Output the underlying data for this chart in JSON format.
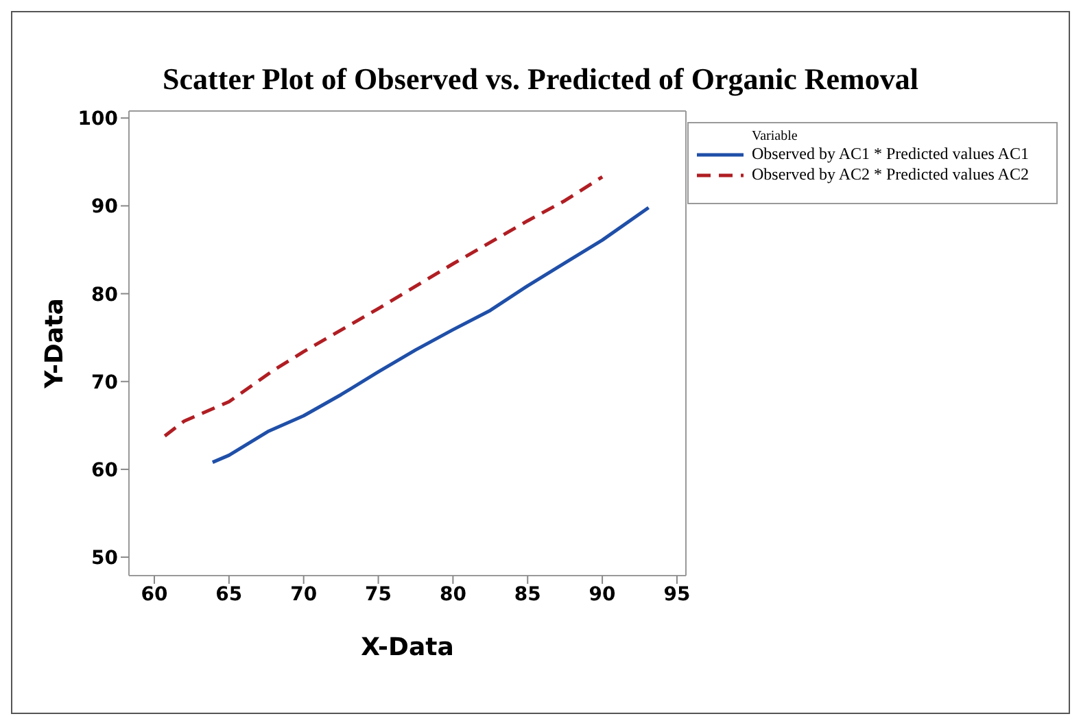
{
  "chart_data": {
    "type": "line",
    "title": "Scatter Plot of Observed vs. Predicted of Organic Removal",
    "xlabel": "X-Data",
    "ylabel": "Y-Data",
    "legend_title": "Variable",
    "legend": "top right",
    "grid": false,
    "marker": "none",
    "xlim": [
      58.3,
      95.6
    ],
    "ylim": [
      47.9,
      100.8
    ],
    "xticks": [
      60,
      65,
      70,
      75,
      80,
      85,
      90,
      95
    ],
    "yticks": [
      50,
      60,
      70,
      80,
      90,
      100
    ],
    "series": [
      {
        "name": "Observed by AC1 * Predicted values AC1",
        "color": "#1f4fa8",
        "line_style": "solid",
        "x": [
          63.9,
          65,
          67.6,
          70,
          72.5,
          75,
          77.5,
          80,
          82.5,
          85,
          87.5,
          90,
          93.1
        ],
        "values": [
          60.8,
          61.6,
          64.3,
          66.1,
          68.5,
          71.1,
          73.6,
          75.9,
          78.1,
          80.9,
          83.5,
          86.1,
          89.8
        ]
      },
      {
        "name": "Observed by AC2 * Predicted values AC2",
        "color": "#b01e23",
        "line_style": "dashed",
        "x": [
          60.7,
          62,
          65,
          68,
          70,
          75,
          80,
          85,
          87.5,
          90
        ],
        "values": [
          63.8,
          65.5,
          67.7,
          71.3,
          73.4,
          78.3,
          83.4,
          88.3,
          90.6,
          93.3
        ]
      }
    ]
  }
}
